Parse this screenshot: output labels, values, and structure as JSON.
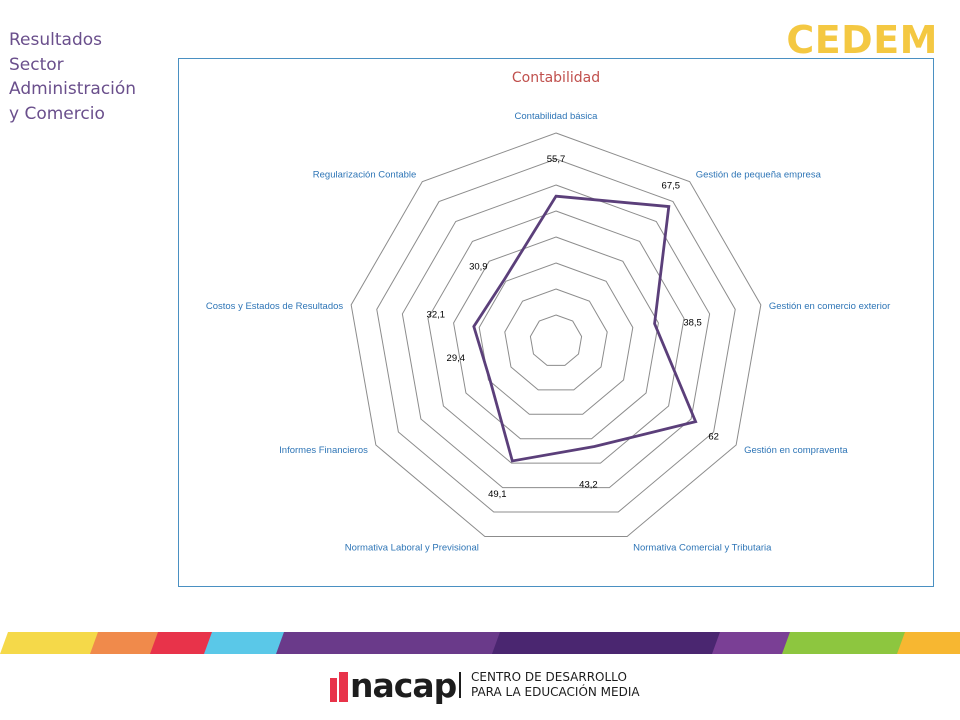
{
  "side_title": [
    "Resultados",
    "Sector",
    "Administración",
    "y Comercio"
  ],
  "brand_logo_text": "CEDEM",
  "chart_data": {
    "type": "radar",
    "title": "Contabilidad",
    "categories": [
      "Contabilidad básica",
      "Gestión de pequeña empresa",
      "Gestión en comercio exterior",
      "Gestión en compraventa",
      "Normativa Comercial y Tributaria",
      "Normativa Laboral y Previsional",
      "Informes Financieros",
      "Costos y Estados de Resultados",
      "Regularización Contable"
    ],
    "values": [
      55.7,
      67.5,
      38.5,
      62,
      43.2,
      49.1,
      29.4,
      32.1,
      30.9
    ],
    "value_labels": [
      "55,7",
      "67,5",
      "38,5",
      "62",
      "43,2",
      "49,1",
      "29,4",
      "32,1",
      "30,9"
    ],
    "rlim": [
      0,
      80
    ],
    "rings": 8,
    "series_color": "#5b3f7a",
    "label_color": "#2e75b6",
    "title_color": "#c0504d"
  },
  "footer": {
    "logo_text": "nacap",
    "org_line1": "CENTRO DE DESARROLLO",
    "org_line2": "PARA LA EDUCACIÓN MEDIA",
    "stripe_colors": [
      "#f5d949",
      "#f08a4b",
      "#e8334a",
      "#5ac8e8",
      "#6a3a8a",
      "#4a2670",
      "#7a3f95",
      "#8dc63f",
      "#f7b731"
    ]
  }
}
